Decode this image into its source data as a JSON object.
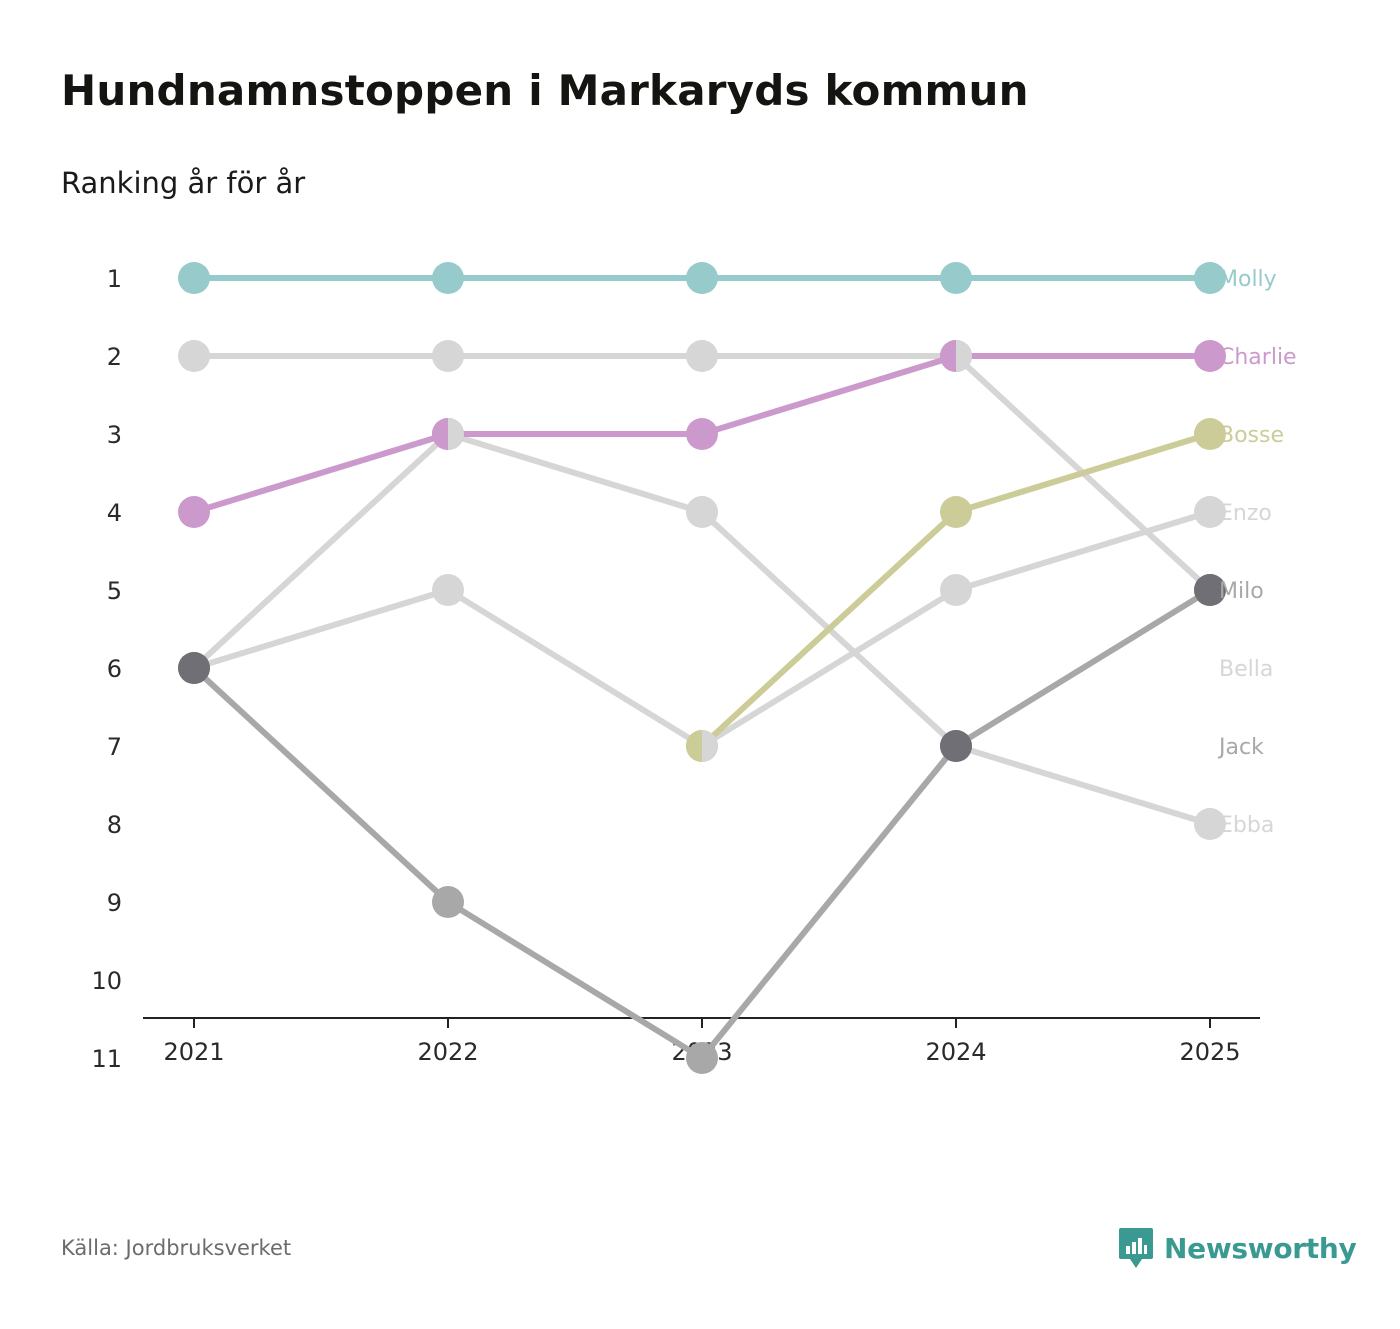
{
  "header": {
    "title": "Hundnamnstoppen i Markaryds kommun",
    "subtitle": "Ranking år för år"
  },
  "footer": {
    "source": "Källa: Jordbruksverket",
    "brand": "Newsworthy",
    "brand_icon": "chart-bubble-icon"
  },
  "colors": {
    "teal": "#97cbcb",
    "purple": "#cc99cc",
    "olive": "#cccc99",
    "light_gray": "#d6d6d6",
    "mid_gray": "#a8a8a8",
    "dark_gray": "#6f6f75",
    "brand": "#3a9a92"
  },
  "chart_data": {
    "type": "line",
    "title": "Hundnamnstoppen i Markaryds kommun",
    "subtitle": "Ranking år för år",
    "xlabel": "",
    "ylabel": "",
    "y_inverted": true,
    "ylim": [
      1,
      11
    ],
    "x": [
      "2021",
      "2022",
      "2023",
      "2024",
      "2025"
    ],
    "y_ticks": [
      "1",
      "2",
      "3",
      "4",
      "5",
      "6",
      "7",
      "8",
      "9",
      "10",
      "11"
    ],
    "series": [
      {
        "name": "Molly",
        "values": [
          1,
          1,
          1,
          1,
          1
        ],
        "color": "#97cbcb",
        "label_color": "#97cbcb",
        "line_color": "#97cbcb",
        "marker_color": "#97cbcb"
      },
      {
        "name": "Bella",
        "values": [
          2,
          2,
          2,
          2,
          5
        ],
        "color": "#d6d6d6",
        "label_color": "#d6d6d6",
        "line_color": "#d6d6d6",
        "marker_color": "#d6d6d6"
      },
      {
        "name": "Charlie",
        "values": [
          4,
          3,
          3,
          2,
          2
        ],
        "color": "#cc99cc",
        "label_color": "#cc99cc",
        "line_color": "#cc99cc",
        "marker_color": "#cc99cc"
      },
      {
        "name": "Ebba",
        "values": [
          6,
          3,
          4,
          7,
          8
        ],
        "color": "#d6d6d6",
        "label_color": "#d6d6d6",
        "line_color": "#d6d6d6",
        "marker_color": "#d6d6d6"
      },
      {
        "name": "Enzo",
        "values": [
          6,
          5,
          7,
          5,
          4
        ],
        "color": "#d6d6d6",
        "label_color": "#d6d6d6",
        "line_color": "#d6d6d6",
        "marker_color": "#d6d6d6"
      },
      {
        "name": "Bosse",
        "values": [
          null,
          null,
          7,
          4,
          3
        ],
        "color": "#cccc99",
        "label_color": "#cccc99",
        "line_color": "#cccc99",
        "marker_color": "#cccc99"
      },
      {
        "name": "Jack",
        "values": [
          6,
          9,
          11,
          7,
          5
        ],
        "color": "#a8a8a8",
        "label_color": "#a8a8a8",
        "line_color": "#a8a8a8",
        "marker_color": "#a8a8a8"
      },
      {
        "name": "Milo",
        "values": [
          6,
          null,
          null,
          7,
          5
        ],
        "color": "#6f6f75",
        "label_color": "#a8a8a8",
        "line_color": null,
        "marker_color": "#6f6f75"
      }
    ],
    "end_labels": [
      {
        "name": "Molly",
        "rank": 1,
        "color": "#97cbcb"
      },
      {
        "name": "Charlie",
        "rank": 2,
        "color": "#cc99cc"
      },
      {
        "name": "Bosse",
        "rank": 3,
        "color": "#cccc99"
      },
      {
        "name": "Enzo",
        "rank": 4,
        "color": "#d6d6d6"
      },
      {
        "name": "Milo",
        "rank": 5,
        "color": "#a8a8a8"
      },
      {
        "name": "Bella",
        "rank": 6,
        "color": "#d6d6d6"
      },
      {
        "name": "Jack",
        "rank": 7,
        "color": "#a8a8a8"
      },
      {
        "name": "Ebba",
        "rank": 8,
        "color": "#d6d6d6"
      }
    ],
    "split_markers": [
      {
        "year": "2022",
        "rank": 3,
        "left": "Charlie",
        "right": "Ebba"
      },
      {
        "year": "2023",
        "rank": 7,
        "left": "Bosse",
        "right": "Enzo"
      },
      {
        "year": "2024",
        "rank": 2,
        "left": "Charlie",
        "right": "Bella"
      }
    ],
    "legend": "end-of-line labels"
  }
}
